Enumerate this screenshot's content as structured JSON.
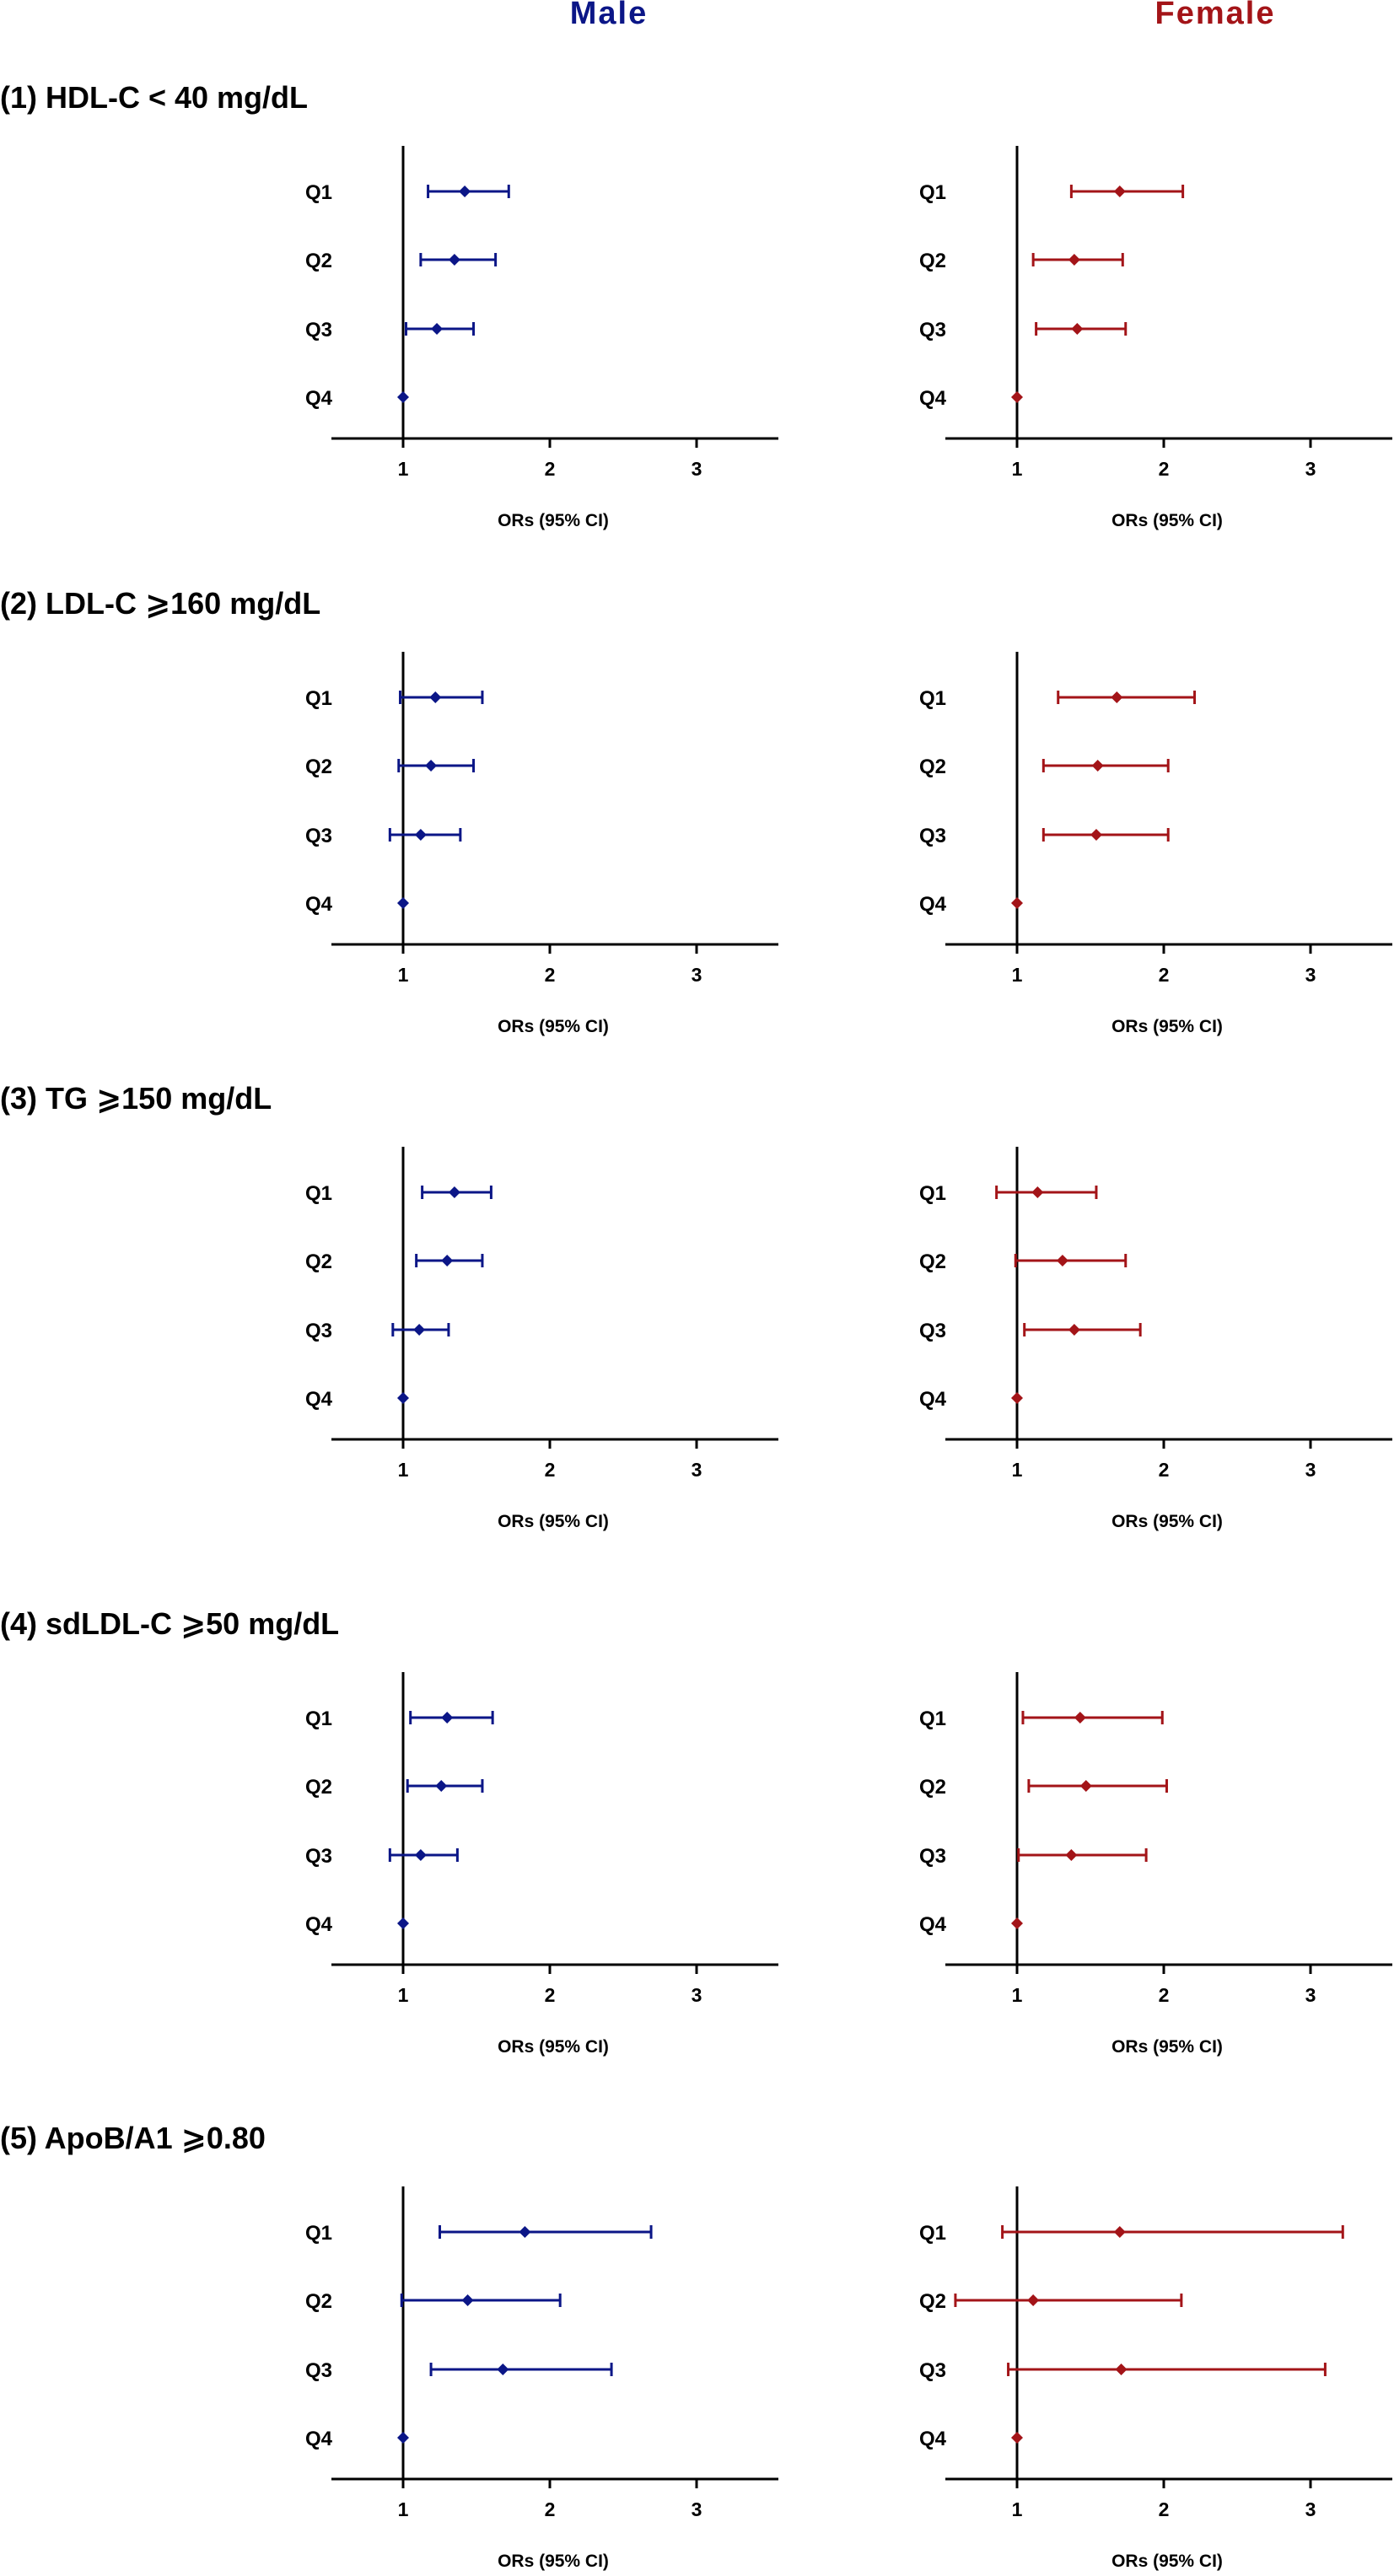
{
  "headers": {
    "male": "Male",
    "female": "Female"
  },
  "colors": {
    "male": "#0b1687",
    "female": "#a31418",
    "axis": "#000000",
    "text": "#000000"
  },
  "chart_data": [
    {
      "type": "forest",
      "title": "(1) HDL-C < 40 mg/dL",
      "xlabel": "ORs (95% CI)",
      "xlim": [
        0.5,
        3.5
      ],
      "xticks": [
        "1",
        "2",
        "3"
      ],
      "reference_line": 1,
      "categories": [
        "Q1",
        "Q2",
        "Q3",
        "Q4"
      ],
      "series": [
        {
          "name": "Male",
          "or": [
            1.42,
            1.35,
            1.23,
            1.0
          ],
          "lower": [
            1.17,
            1.12,
            1.02,
            1.0
          ],
          "upper": [
            1.72,
            1.63,
            1.48,
            1.0
          ]
        },
        {
          "name": "Female",
          "or": [
            1.7,
            1.39,
            1.41,
            1.0
          ],
          "lower": [
            1.37,
            1.11,
            1.13,
            1.0
          ],
          "upper": [
            2.13,
            1.72,
            1.74,
            1.0
          ]
        }
      ]
    },
    {
      "type": "forest",
      "title": "(2) LDL-C ⩾160 mg/dL",
      "xlabel": "ORs (95% CI)",
      "xlim": [
        0.5,
        3.5
      ],
      "xticks": [
        "1",
        "2",
        "3"
      ],
      "reference_line": 1,
      "categories": [
        "Q1",
        "Q2",
        "Q3",
        "Q4"
      ],
      "series": [
        {
          "name": "Male",
          "or": [
            1.22,
            1.19,
            1.12,
            1.0
          ],
          "lower": [
            0.98,
            0.97,
            0.91,
            1.0
          ],
          "upper": [
            1.54,
            1.48,
            1.39,
            1.0
          ]
        },
        {
          "name": "Female",
          "or": [
            1.68,
            1.55,
            1.54,
            1.0
          ],
          "lower": [
            1.28,
            1.18,
            1.18,
            1.0
          ],
          "upper": [
            2.21,
            2.03,
            2.03,
            1.0
          ]
        }
      ]
    },
    {
      "type": "forest",
      "title": "(3) TG ⩾150 mg/dL",
      "xlabel": "ORs (95% CI)",
      "xlim": [
        0.5,
        3.5
      ],
      "xticks": [
        "1",
        "2",
        "3"
      ],
      "reference_line": 1,
      "categories": [
        "Q1",
        "Q2",
        "Q3",
        "Q4"
      ],
      "series": [
        {
          "name": "Male",
          "or": [
            1.35,
            1.3,
            1.11,
            1.0
          ],
          "lower": [
            1.13,
            1.09,
            0.93,
            1.0
          ],
          "upper": [
            1.6,
            1.54,
            1.31,
            1.0
          ]
        },
        {
          "name": "Female",
          "or": [
            1.14,
            1.31,
            1.39,
            1.0
          ],
          "lower": [
            0.86,
            0.99,
            1.05,
            1.0
          ],
          "upper": [
            1.54,
            1.74,
            1.84,
            1.0
          ]
        }
      ]
    },
    {
      "type": "forest",
      "title": "(4) sdLDL-C ⩾50 mg/dL",
      "xlabel": "ORs (95% CI)",
      "xlim": [
        0.5,
        3.5
      ],
      "xticks": [
        "1",
        "2",
        "3"
      ],
      "reference_line": 1,
      "categories": [
        "Q1",
        "Q2",
        "Q3",
        "Q4"
      ],
      "series": [
        {
          "name": "Male",
          "or": [
            1.3,
            1.26,
            1.12,
            1.0
          ],
          "lower": [
            1.05,
            1.03,
            0.91,
            1.0
          ],
          "upper": [
            1.61,
            1.54,
            1.37,
            1.0
          ]
        },
        {
          "name": "Female",
          "or": [
            1.43,
            1.47,
            1.37,
            1.0
          ],
          "lower": [
            1.04,
            1.08,
            1.01,
            1.0
          ],
          "upper": [
            1.99,
            2.02,
            1.88,
            1.0
          ]
        }
      ]
    },
    {
      "type": "forest",
      "title": "(5) ApoB/A1 ⩾0.80",
      "xlabel": "ORs (95% CI)",
      "xlim": [
        0.5,
        3.5
      ],
      "xticks": [
        "1",
        "2",
        "3"
      ],
      "reference_line": 1,
      "categories": [
        "Q1",
        "Q2",
        "Q3",
        "Q4"
      ],
      "series": [
        {
          "name": "Male",
          "or": [
            1.83,
            1.44,
            1.68,
            1.0
          ],
          "lower": [
            1.25,
            0.99,
            1.19,
            1.0
          ],
          "upper": [
            2.69,
            2.07,
            2.42,
            1.0
          ]
        },
        {
          "name": "Female",
          "or": [
            1.7,
            1.11,
            1.71,
            1.0
          ],
          "lower": [
            0.9,
            0.58,
            0.94,
            1.0
          ],
          "upper": [
            3.22,
            2.12,
            3.1,
            1.0
          ]
        }
      ]
    }
  ]
}
